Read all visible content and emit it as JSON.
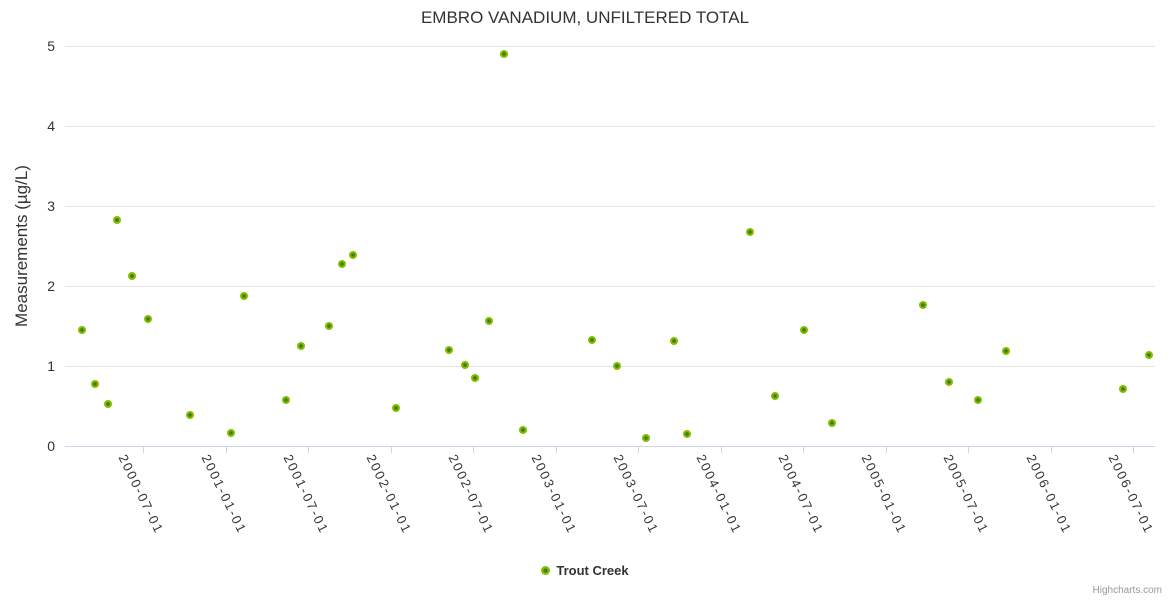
{
  "chart": {
    "title": "EMBRO VANADIUM, UNFILTERED TOTAL",
    "credits": "Highcharts.com"
  },
  "legend": {
    "items": [
      {
        "label": "Trout Creek",
        "marker_color": "#84bd00",
        "marker_center_color": "#3e7a00"
      }
    ]
  },
  "chart_data": {
    "type": "scatter",
    "title": "EMBRO VANADIUM, UNFILTERED TOTAL",
    "xlabel": "",
    "ylabel": "Measurements (µg/L)",
    "ylim": [
      0,
      5
    ],
    "yticks": [
      0,
      1,
      2,
      3,
      4,
      5
    ],
    "xlim": [
      "2000-01-10",
      "2006-08-19"
    ],
    "xticks": [
      "2000-07-01",
      "2001-01-01",
      "2001-07-01",
      "2002-01-01",
      "2002-07-01",
      "2003-01-01",
      "2003-07-01",
      "2004-01-01",
      "2004-07-01",
      "2005-01-01",
      "2005-07-01",
      "2006-01-01",
      "2006-07-01"
    ],
    "grid": true,
    "legend_position": "bottom-center",
    "series": [
      {
        "name": "Trout Creek",
        "color": "#84bd00",
        "points": [
          {
            "x": "2000-02-17",
            "y": 1.45
          },
          {
            "x": "2000-03-17",
            "y": 0.78
          },
          {
            "x": "2000-04-14",
            "y": 0.53
          },
          {
            "x": "2000-05-04",
            "y": 2.83
          },
          {
            "x": "2000-06-06",
            "y": 2.12
          },
          {
            "x": "2000-07-12",
            "y": 1.59
          },
          {
            "x": "2000-10-13",
            "y": 0.39
          },
          {
            "x": "2001-01-12",
            "y": 0.16
          },
          {
            "x": "2001-02-10",
            "y": 1.87
          },
          {
            "x": "2001-05-14",
            "y": 0.57
          },
          {
            "x": "2001-06-16",
            "y": 1.25
          },
          {
            "x": "2001-08-17",
            "y": 1.5
          },
          {
            "x": "2001-09-14",
            "y": 2.28
          },
          {
            "x": "2001-10-09",
            "y": 2.39
          },
          {
            "x": "2002-01-12",
            "y": 0.47
          },
          {
            "x": "2002-05-10",
            "y": 1.2
          },
          {
            "x": "2002-06-14",
            "y": 1.01
          },
          {
            "x": "2002-07-06",
            "y": 0.85
          },
          {
            "x": "2002-08-06",
            "y": 1.56
          },
          {
            "x": "2002-09-08",
            "y": 4.9
          },
          {
            "x": "2002-10-20",
            "y": 0.2
          },
          {
            "x": "2003-03-22",
            "y": 1.32
          },
          {
            "x": "2003-05-17",
            "y": 1.0
          },
          {
            "x": "2003-07-20",
            "y": 0.1
          },
          {
            "x": "2003-09-20",
            "y": 1.31
          },
          {
            "x": "2003-10-19",
            "y": 0.15
          },
          {
            "x": "2004-03-06",
            "y": 2.67
          },
          {
            "x": "2004-04-30",
            "y": 0.63
          },
          {
            "x": "2004-07-04",
            "y": 1.45
          },
          {
            "x": "2004-09-04",
            "y": 0.29
          },
          {
            "x": "2005-03-24",
            "y": 1.76
          },
          {
            "x": "2005-05-20",
            "y": 0.8
          },
          {
            "x": "2005-07-24",
            "y": 0.57
          },
          {
            "x": "2005-09-24",
            "y": 1.19
          },
          {
            "x": "2006-06-09",
            "y": 0.71
          },
          {
            "x": "2006-08-05",
            "y": 1.14
          }
        ]
      }
    ]
  }
}
